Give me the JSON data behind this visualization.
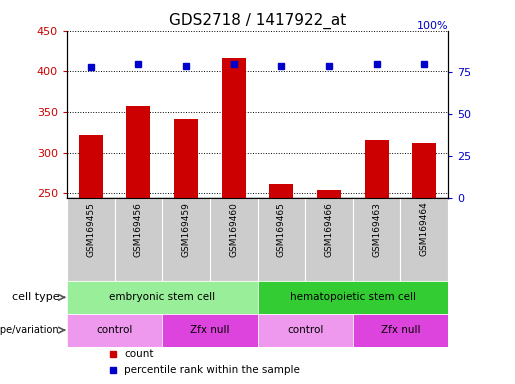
{
  "title": "GDS2718 / 1417922_at",
  "samples": [
    "GSM169455",
    "GSM169456",
    "GSM169459",
    "GSM169460",
    "GSM169465",
    "GSM169466",
    "GSM169463",
    "GSM169464"
  ],
  "counts": [
    322,
    358,
    342,
    416,
    262,
    254,
    316,
    312
  ],
  "percentile_ranks": [
    78,
    80,
    79,
    80,
    79,
    79,
    80,
    80
  ],
  "ylim_left": [
    245,
    450
  ],
  "yticks_left": [
    250,
    300,
    350,
    400,
    450
  ],
  "ylim_right": [
    0,
    100
  ],
  "yticks_right": [
    0,
    25,
    50,
    75
  ],
  "bar_color": "#cc0000",
  "dot_color": "#0000cc",
  "cell_type_groups": [
    {
      "label": "embryonic stem cell",
      "start": 0,
      "end": 4,
      "color": "#99ee99"
    },
    {
      "label": "hematopoietic stem cell",
      "start": 4,
      "end": 8,
      "color": "#33cc33"
    }
  ],
  "genotype_groups": [
    {
      "label": "control",
      "start": 0,
      "end": 2,
      "color": "#ee99ee"
    },
    {
      "label": "Zfx null",
      "start": 2,
      "end": 4,
      "color": "#dd44dd"
    },
    {
      "label": "control",
      "start": 4,
      "end": 6,
      "color": "#ee99ee"
    },
    {
      "label": "Zfx null",
      "start": 6,
      "end": 8,
      "color": "#dd44dd"
    }
  ],
  "legend_items": [
    {
      "label": "count",
      "color": "#cc0000"
    },
    {
      "label": "percentile rank within the sample",
      "color": "#0000cc"
    }
  ],
  "title_fontsize": 11,
  "tick_fontsize": 8,
  "bar_width": 0.5,
  "xlim": [
    -0.5,
    7.5
  ],
  "sample_bg_color": "#cccccc",
  "sample_grid_color": "#888888"
}
